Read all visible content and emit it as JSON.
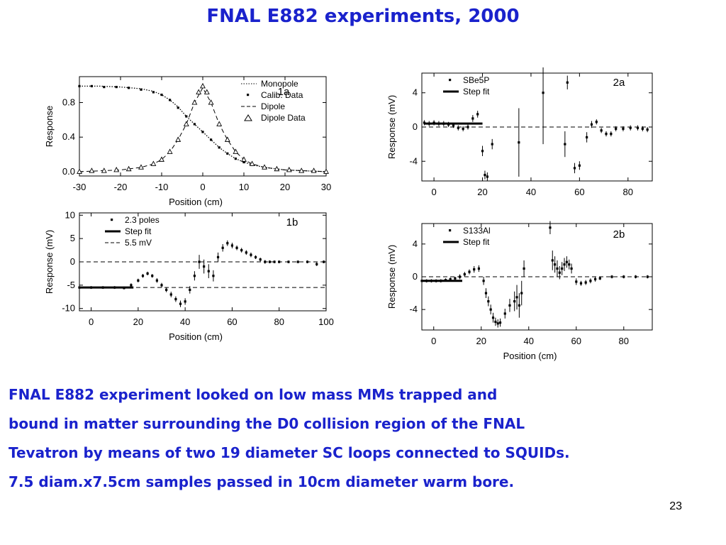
{
  "slide": {
    "title": "FNAL E882 experiments, 2000",
    "body_lines": [
      "FNAL E882 experiment looked on  low mass MMs trapped and",
      "bound in matter surrounding the D0 collision region of the FNAL",
      "Tevatron by means of two 19 diameter SC loops connected to SQUIDs.",
      "7.5 diam.x7.5cm samples passed in 10cm diameter warm bore."
    ],
    "page_number": "23",
    "accent_color": "#1a22cc"
  },
  "chart_data": [
    {
      "id": "1a",
      "type": "line",
      "panel_label": "1a",
      "xlabel": "Position   (cm)",
      "ylabel": "Response",
      "xlim": [
        -30,
        30
      ],
      "ylim": [
        -0.05,
        1.1
      ],
      "xticks": [
        -30,
        -20,
        -10,
        0,
        10,
        20,
        30
      ],
      "yticks": [
        0.0,
        0.4,
        0.8
      ],
      "ytick_labels": [
        "0.0",
        "0.4",
        "0.8"
      ],
      "legend": [
        "Monopole",
        "Calib. Data",
        "Dipole",
        "Dipole Data"
      ],
      "series": [
        {
          "name": "Monopole",
          "style": "dotted-line",
          "x": [
            -30,
            -25,
            -20,
            -15,
            -12,
            -10,
            -8,
            -6,
            -4,
            -2,
            0,
            2,
            4,
            6,
            8,
            10,
            12,
            15,
            20,
            25,
            30
          ],
          "y": [
            0.99,
            0.99,
            0.98,
            0.96,
            0.93,
            0.89,
            0.83,
            0.75,
            0.64,
            0.55,
            0.46,
            0.37,
            0.28,
            0.21,
            0.15,
            0.11,
            0.08,
            0.05,
            0.02,
            0.01,
            0.0
          ]
        },
        {
          "name": "Calib. Data",
          "style": "square-markers",
          "x": [
            -30,
            -27,
            -24,
            -21,
            -18,
            -15,
            -12,
            -10,
            -8,
            -6,
            -4,
            -2,
            0,
            2,
            4,
            6,
            8,
            10,
            12,
            15,
            18,
            21,
            24,
            27,
            30
          ],
          "y": [
            0.99,
            0.99,
            0.98,
            0.98,
            0.97,
            0.95,
            0.92,
            0.89,
            0.83,
            0.74,
            0.64,
            0.55,
            0.46,
            0.37,
            0.28,
            0.21,
            0.15,
            0.11,
            0.08,
            0.05,
            0.03,
            0.02,
            0.01,
            0.01,
            0.0
          ]
        },
        {
          "name": "Dipole",
          "style": "dashed-line",
          "x": [
            -30,
            -25,
            -20,
            -15,
            -12,
            -10,
            -8,
            -6,
            -4,
            -2,
            0,
            2,
            4,
            6,
            8,
            10,
            12,
            15,
            20,
            25,
            30
          ],
          "y": [
            0.0,
            0.01,
            0.02,
            0.05,
            0.09,
            0.14,
            0.23,
            0.37,
            0.55,
            0.8,
            0.97,
            0.8,
            0.55,
            0.37,
            0.23,
            0.14,
            0.09,
            0.05,
            0.02,
            0.01,
            0.0
          ]
        },
        {
          "name": "Dipole Data",
          "style": "triangle-markers",
          "x": [
            -30,
            -27,
            -24,
            -21,
            -18,
            -15,
            -12,
            -10,
            -8,
            -6,
            -4,
            -2,
            -1,
            0,
            1,
            2,
            4,
            6,
            8,
            10,
            12,
            15,
            18,
            21,
            24,
            27,
            30
          ],
          "y": [
            0.0,
            0.01,
            0.01,
            0.02,
            0.03,
            0.05,
            0.09,
            0.14,
            0.23,
            0.37,
            0.55,
            0.8,
            0.92,
            0.99,
            0.92,
            0.8,
            0.55,
            0.37,
            0.23,
            0.14,
            0.09,
            0.05,
            0.03,
            0.02,
            0.01,
            0.01,
            0.0
          ]
        }
      ]
    },
    {
      "id": "1b",
      "type": "scatter",
      "panel_label": "1b",
      "xlabel": "Position   (cm)",
      "ylabel": "Response (mV)",
      "xlim": [
        -5,
        100
      ],
      "ylim": [
        -10.5,
        10.5
      ],
      "xticks": [
        0,
        20,
        40,
        60,
        80,
        100
      ],
      "yticks": [
        10,
        5,
        0,
        -5,
        -10
      ],
      "legend": [
        "2.3 poles",
        "Step fit",
        "5.5 mV"
      ],
      "series": [
        {
          "name": "2.3 poles",
          "style": "markers-errorbars",
          "x": [
            -5,
            0,
            5,
            10,
            14,
            17,
            20,
            22,
            24,
            26,
            28,
            30,
            32,
            34,
            36,
            38,
            40,
            42,
            44,
            46,
            48,
            50,
            52,
            54,
            56,
            58,
            60,
            62,
            64,
            66,
            68,
            70,
            72,
            74,
            76,
            78,
            80,
            84,
            88,
            92,
            96,
            99
          ],
          "y": [
            -5.5,
            -5.5,
            -5.5,
            -5.5,
            -5.6,
            -5,
            -4,
            -3,
            -2.5,
            -3,
            -4,
            -5,
            -6,
            -7,
            -8,
            -9,
            -8.5,
            -6,
            -3,
            0,
            -1,
            -2,
            -3,
            1,
            3,
            4,
            3.5,
            3,
            2.5,
            2,
            1.5,
            1,
            0.5,
            0,
            0,
            0,
            0,
            0,
            0,
            0,
            -0.5,
            0
          ],
          "err": [
            0.3,
            0.3,
            0.3,
            0.3,
            0.3,
            0.4,
            0.4,
            0.4,
            0.4,
            0.4,
            0.5,
            0.5,
            0.5,
            0.6,
            0.6,
            0.7,
            0.7,
            0.8,
            1,
            1.5,
            1.5,
            1.5,
            1.2,
            1,
            0.8,
            0.6,
            0.6,
            0.5,
            0.5,
            0.5,
            0.5,
            0.4,
            0.4,
            0.4,
            0.3,
            0.3,
            0.3,
            0.3,
            0.3,
            0.3,
            0.4,
            0.3
          ]
        },
        {
          "name": "Step fit",
          "style": "thick-line",
          "x": [
            -5,
            18
          ],
          "y": [
            -5.5,
            -5.5
          ]
        },
        {
          "name": "5.5 mV",
          "style": "dashed-line",
          "x": [
            -5,
            100
          ],
          "y": [
            -5.5,
            -5.5
          ]
        }
      ],
      "reference_line_zero": true
    },
    {
      "id": "2a",
      "type": "scatter",
      "panel_label": "2a",
      "xlabel": "",
      "ylabel": "Response  (mV)",
      "xlim": [
        -5,
        90
      ],
      "ylim": [
        -6.3,
        6.3
      ],
      "xticks": [
        0,
        20,
        40,
        60,
        80
      ],
      "yticks": [
        4,
        0,
        -4
      ],
      "legend": [
        "SBe5P",
        "Step fit"
      ],
      "series": [
        {
          "name": "SBe5P",
          "style": "markers-errorbars",
          "x": [
            -4,
            -2,
            0,
            2,
            4,
            6,
            8,
            10,
            12,
            14,
            16,
            18,
            20,
            21,
            22,
            24,
            35,
            45,
            54,
            55,
            58,
            60,
            63,
            65,
            67,
            69,
            71,
            73,
            75,
            78,
            81,
            84,
            86,
            88
          ],
          "y": [
            0.5,
            0.4,
            0.5,
            0.4,
            0.4,
            0.3,
            0.2,
            -0.1,
            -0.2,
            0,
            1,
            1.5,
            -2.8,
            -5.6,
            -5.8,
            -2,
            -1.8,
            4,
            -2,
            5.2,
            -4.8,
            -4.5,
            -1.2,
            0.3,
            0.6,
            -0.4,
            -0.8,
            -0.8,
            -0.2,
            -0.2,
            -0.1,
            -0.1,
            -0.2,
            -0.3
          ],
          "err": [
            0.3,
            0.3,
            0.3,
            0.3,
            0.3,
            0.3,
            0.3,
            0.3,
            0.3,
            0.3,
            0.4,
            0.4,
            0.6,
            0.5,
            0.5,
            0.6,
            4,
            6,
            1.5,
            0.8,
            0.6,
            0.5,
            0.6,
            0.4,
            0.3,
            0.3,
            0.3,
            0.3,
            0.3,
            0.3,
            0.3,
            0.3,
            0.3,
            0.3
          ]
        },
        {
          "name": "Step fit",
          "style": "thick-line",
          "x": [
            -4,
            20
          ],
          "y": [
            0.4,
            0.4
          ]
        }
      ],
      "reference_line_zero": true
    },
    {
      "id": "2b",
      "type": "scatter",
      "panel_label": "2b",
      "xlabel": "Position   (cm)",
      "ylabel": "Response  (mV)",
      "xlim": [
        -5,
        92
      ],
      "ylim": [
        -6.5,
        6.5
      ],
      "xticks": [
        0,
        20,
        40,
        60,
        80
      ],
      "yticks": [
        4,
        0,
        -4
      ],
      "legend": [
        "S133Al",
        "Step fit"
      ],
      "series": [
        {
          "name": "S133Al",
          "style": "markers-errorbars",
          "x": [
            -5,
            -3,
            -1,
            1,
            3,
            5,
            7,
            9,
            11,
            13,
            15,
            17,
            19,
            21,
            22,
            23,
            24,
            25,
            26,
            27,
            28,
            30,
            32,
            34,
            35,
            36,
            37,
            38,
            49,
            50,
            51,
            52,
            53,
            54,
            55,
            56,
            57,
            58,
            60,
            62,
            64,
            66,
            68,
            70,
            75,
            80,
            85,
            90
          ],
          "y": [
            -0.5,
            -0.5,
            -0.5,
            -0.5,
            -0.5,
            -0.4,
            -0.3,
            -0.2,
            0,
            0.3,
            0.6,
            0.9,
            1,
            -0.5,
            -2,
            -3,
            -4,
            -5,
            -5.5,
            -5.7,
            -5.6,
            -4.5,
            -3.5,
            -3,
            -2.5,
            -3.5,
            -2,
            1,
            6,
            2,
            1.5,
            1,
            0.5,
            1,
            1.5,
            1.8,
            1.5,
            1,
            -0.6,
            -0.8,
            -0.7,
            -0.5,
            -0.3,
            -0.2,
            0,
            0,
            0,
            0
          ],
          "err": [
            0.2,
            0.2,
            0.2,
            0.2,
            0.2,
            0.2,
            0.2,
            0.2,
            0.3,
            0.3,
            0.3,
            0.4,
            0.4,
            0.5,
            0.6,
            0.6,
            0.6,
            0.6,
            0.5,
            0.5,
            0.5,
            0.6,
            0.8,
            1.2,
            1.5,
            1.5,
            1.5,
            1,
            0.8,
            1.2,
            1,
            1,
            0.8,
            0.8,
            0.8,
            0.7,
            0.6,
            0.6,
            0.4,
            0.3,
            0.3,
            0.3,
            0.3,
            0.2,
            0.2,
            0.2,
            0.2,
            0.2
          ]
        },
        {
          "name": "Step fit",
          "style": "thick-line",
          "x": [
            -5,
            12
          ],
          "y": [
            -0.5,
            -0.5
          ]
        }
      ],
      "reference_line_zero": true
    }
  ]
}
